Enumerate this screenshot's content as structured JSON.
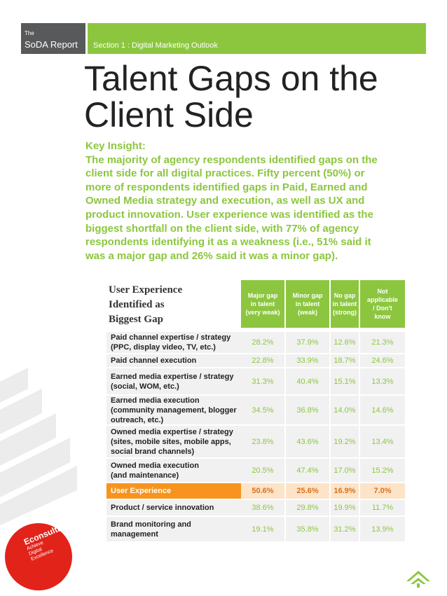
{
  "header": {
    "brand_small": "The",
    "brand": "SoDA Report",
    "section": "Section 1 : Digital Marketing Outlook"
  },
  "title": [
    "Talent Gaps on the",
    "Client Side"
  ],
  "insight": {
    "heading": "Key Insight:",
    "lines": [
      "The majority of agency respondents identified gaps on the",
      "client side for all digital practices. Fifty percent (50%) or",
      "more of respondents identified gaps in Paid, Earned and",
      "Owned Media strategy and execution, as well as UX and",
      "product innovation. User experience was identified as the",
      "biggest shortfall on the client side, with 77% of agency",
      "respondents identifying it as a weakness (i.e., 51% said it",
      "was a major gap and 26% said it was a minor gap)."
    ]
  },
  "table": {
    "caption": [
      "User Experience",
      "Identified as",
      "Biggest Gap"
    ],
    "columns": [
      [
        "Major gap",
        "in talent",
        "(very weak)"
      ],
      [
        "Minor gap",
        "in talent",
        "(weak)"
      ],
      [
        "No gap",
        "in talent",
        "(strong)"
      ],
      [
        "Not",
        "applicable",
        "/ Don't",
        "know"
      ]
    ],
    "rows": [
      {
        "label": [
          "Paid channel expertise / strategy",
          "(PPC, display video, TV, etc.)"
        ],
        "cells": [
          "28.2%",
          "37.9%",
          "12.6%",
          "21.3%"
        ]
      },
      {
        "label": [
          "Paid channel execution"
        ],
        "cells": [
          "22.8%",
          "33.9%",
          "18.7%",
          "24.6%"
        ]
      },
      {
        "label": [
          "Earned media expertise / strategy",
          "(social, WOM, etc.)"
        ],
        "cells": [
          "31.3%",
          "40.4%",
          "15.1%",
          "13.3%"
        ]
      },
      {
        "label": [
          "Earned media execution",
          "(community management, blogger",
          "outreach, etc.)"
        ],
        "cells": [
          "34.5%",
          "36.8%",
          "14.0%",
          "14.6%"
        ]
      },
      {
        "label": [
          "Owned media expertise / strategy",
          "(sites, mobile sites, mobile apps,",
          "social brand channels)"
        ],
        "cells": [
          "23.8%",
          "43.6%",
          "19.2%",
          "13.4%"
        ]
      },
      {
        "label": [
          "Owned media execution",
          "(and maintenance)"
        ],
        "cells": [
          "20.5%",
          "47.4%",
          "17.0%",
          "15.2%"
        ]
      },
      {
        "label": [
          "User Experience"
        ],
        "cells": [
          "50.6%",
          "25.6%",
          "16.9%",
          "7.0%"
        ],
        "highlight": true
      },
      {
        "label": [
          "Product / service innovation"
        ],
        "cells": [
          "38.6%",
          "29.8%",
          "19.9%",
          "11.7%"
        ]
      },
      {
        "label": [
          "Brand monitoring and",
          "management"
        ],
        "cells": [
          "19.1%",
          "35.8%",
          "31.2%",
          "13.9%"
        ]
      }
    ]
  },
  "logo": {
    "name": "Econsultancy",
    "tagline": [
      "Achieve",
      "Digital",
      "Excellence"
    ]
  }
}
